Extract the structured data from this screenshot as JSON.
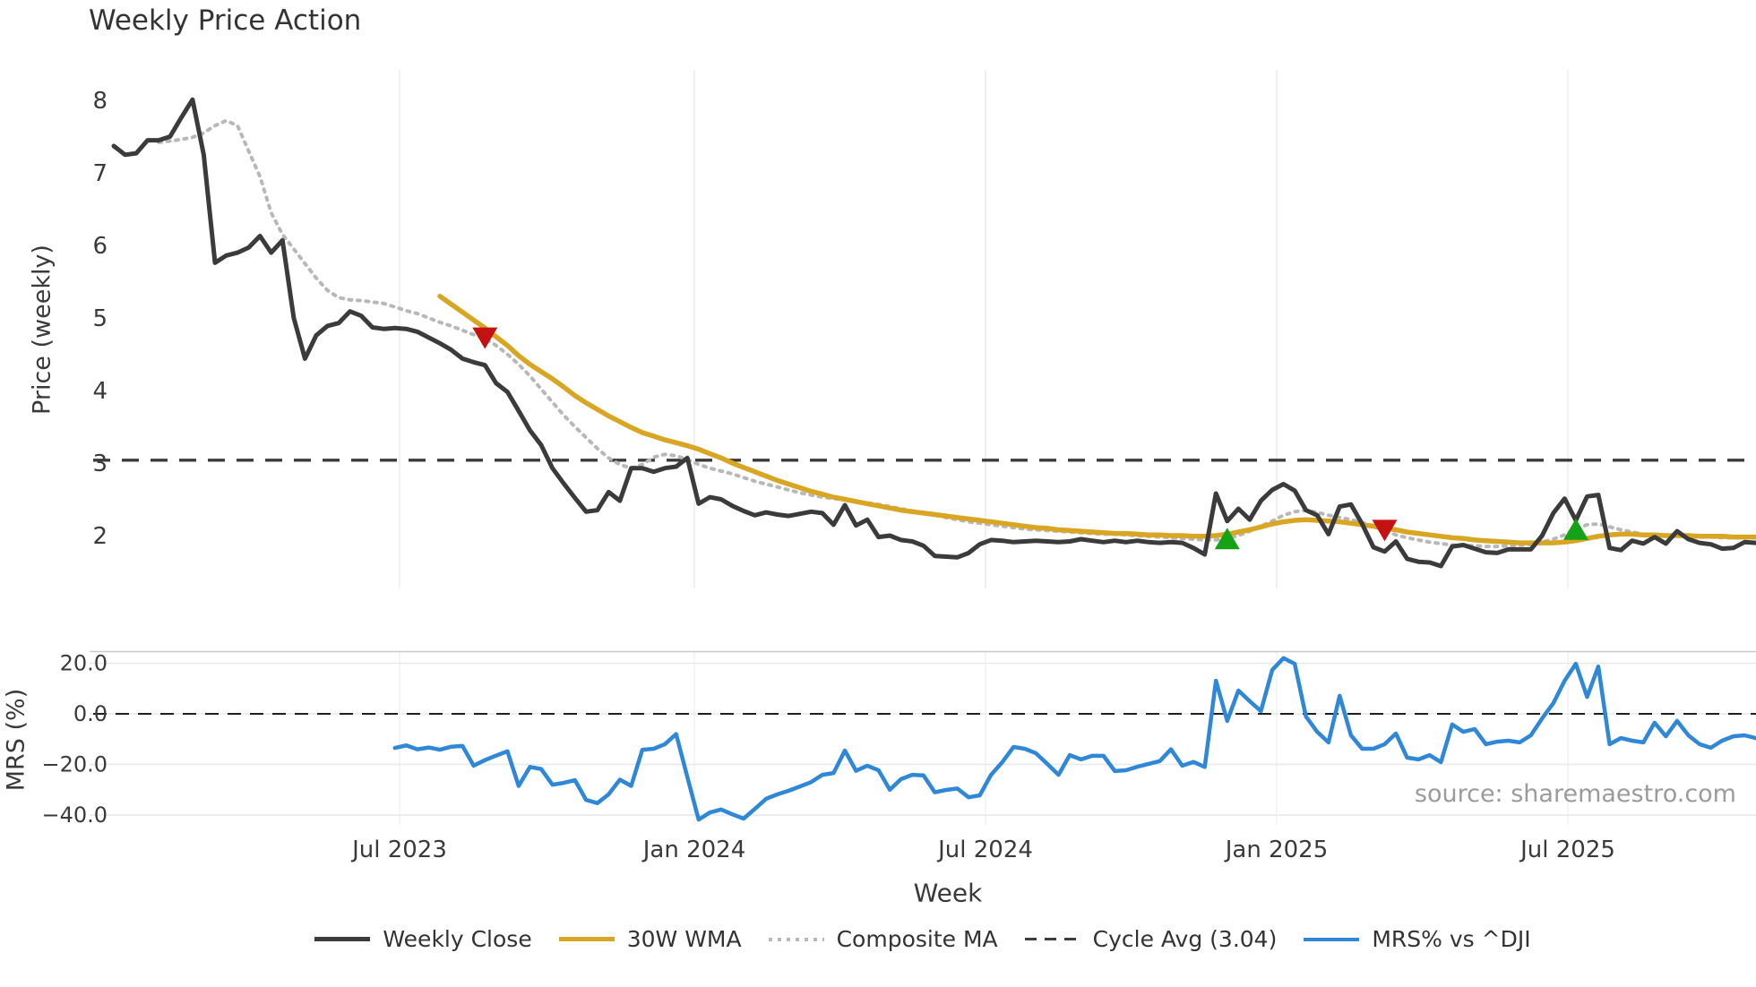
{
  "title": "Weekly Price Action",
  "xlabel": "Week",
  "source": "source: sharemaestro.com",
  "colors": {
    "weekly_close": "#3b3b3b",
    "wma30": "#d8a622",
    "composite": "#b8b8b8",
    "cycle_avg": "#3b3b3b",
    "mrs": "#2f87d8",
    "sell_marker": "#c41111",
    "buy_marker": "#16a216",
    "grid_vertical": "#ececec",
    "grid_mrs": "#e7e7ec",
    "spine": "#c9c9ce",
    "tick_text": "#3a3a3a"
  },
  "legend": {
    "items": [
      {
        "label": "Weekly Close",
        "style": "weekly"
      },
      {
        "label": "30W WMA",
        "style": "wma"
      },
      {
        "label": "Composite MA",
        "style": "composite"
      },
      {
        "label": "Cycle Avg (3.04)",
        "style": "cycle"
      },
      {
        "label": "MRS% vs ^DJI",
        "style": "mrs"
      }
    ]
  },
  "chart_data": {
    "type": "line",
    "x_axis": {
      "unit": "week",
      "weeks_total": 147,
      "ticks": [
        {
          "week": 25.41,
          "label": "Jul 2023"
        },
        {
          "week": 51.62,
          "label": "Jan 2024"
        },
        {
          "week": 77.51,
          "label": "Jul 2024"
        },
        {
          "week": 103.4,
          "label": "Jan 2025"
        },
        {
          "week": 129.29,
          "label": "Jul 2025"
        }
      ]
    },
    "panels": [
      {
        "name": "price",
        "ylabel": "Price (weekly)",
        "yticks": [
          8,
          7,
          6,
          5,
          4,
          3,
          2
        ],
        "ylim": [
          1.27,
          8.42
        ],
        "grid": "vertical",
        "cycle_avg": {
          "label": "Cycle Avg (3.04)",
          "value": 3.04
        },
        "series": [
          {
            "name": "Weekly Close",
            "start_week": 0,
            "values": [
              7.37,
              7.25,
              7.27,
              7.45,
              7.45,
              7.5,
              7.76,
              8.01,
              7.25,
              5.76,
              5.86,
              5.9,
              5.97,
              6.13,
              5.9,
              6.07,
              5.0,
              4.44,
              4.76,
              4.89,
              4.93,
              5.09,
              5.03,
              4.87,
              4.85,
              4.86,
              4.85,
              4.81,
              4.73,
              4.65,
              4.56,
              4.44,
              4.39,
              4.35,
              4.1,
              3.98,
              3.72,
              3.45,
              3.25,
              2.93,
              2.72,
              2.52,
              2.33,
              2.35,
              2.6,
              2.48,
              2.93,
              2.93,
              2.88,
              2.93,
              2.95,
              3.07,
              2.44,
              2.53,
              2.5,
              2.41,
              2.34,
              2.28,
              2.32,
              2.29,
              2.27,
              2.3,
              2.33,
              2.31,
              2.15,
              2.42,
              2.14,
              2.22,
              1.98,
              2.0,
              1.94,
              1.92,
              1.86,
              1.72,
              1.71,
              1.7,
              1.76,
              1.88,
              1.94,
              1.93,
              1.91,
              1.92,
              1.93,
              1.92,
              1.91,
              1.92,
              1.95,
              1.93,
              1.91,
              1.93,
              1.91,
              1.93,
              1.91,
              1.9,
              1.91,
              1.9,
              1.83,
              1.74,
              2.58,
              2.2,
              2.37,
              2.22,
              2.48,
              2.63,
              2.71,
              2.62,
              2.35,
              2.28,
              2.02,
              2.4,
              2.43,
              2.16,
              1.84,
              1.78,
              1.92,
              1.68,
              1.64,
              1.63,
              1.58,
              1.85,
              1.87,
              1.82,
              1.77,
              1.76,
              1.81,
              1.81,
              1.81,
              2.0,
              2.31,
              2.51,
              2.21,
              2.54,
              2.56,
              1.83,
              1.8,
              1.93,
              1.89,
              1.98,
              1.89,
              2.06,
              1.95,
              1.9,
              1.88,
              1.82,
              1.83,
              1.91,
              1.9
            ]
          },
          {
            "name": "30W WMA",
            "start_week": 29,
            "values": [
              5.3,
              5.19,
              5.08,
              4.97,
              4.86,
              4.74,
              4.62,
              4.48,
              4.36,
              4.26,
              4.16,
              4.05,
              3.93,
              3.83,
              3.74,
              3.65,
              3.57,
              3.49,
              3.42,
              3.37,
              3.32,
              3.28,
              3.24,
              3.19,
              3.13,
              3.07,
              3.0,
              2.94,
              2.88,
              2.82,
              2.76,
              2.71,
              2.66,
              2.61,
              2.57,
              2.53,
              2.5,
              2.47,
              2.44,
              2.41,
              2.38,
              2.35,
              2.33,
              2.31,
              2.29,
              2.27,
              2.25,
              2.23,
              2.21,
              2.19,
              2.17,
              2.15,
              2.13,
              2.11,
              2.1,
              2.08,
              2.07,
              2.06,
              2.05,
              2.04,
              2.03,
              2.03,
              2.02,
              2.01,
              2.01,
              2.0,
              2.0,
              1.99,
              1.99,
              2.0,
              2.02,
              2.05,
              2.08,
              2.12,
              2.16,
              2.19,
              2.21,
              2.22,
              2.21,
              2.2,
              2.19,
              2.17,
              2.15,
              2.13,
              2.1,
              2.08,
              2.05,
              2.03,
              2.01,
              1.99,
              1.97,
              1.96,
              1.94,
              1.93,
              1.92,
              1.91,
              1.9,
              1.9,
              1.9,
              1.9,
              1.91,
              1.93,
              1.96,
              1.99,
              2.01,
              2.02,
              2.02,
              2.01,
              2.01,
              2.0,
              2.0,
              2.0,
              1.99,
              1.99,
              1.99,
              1.98,
              1.98,
              1.98
            ]
          },
          {
            "name": "Composite MA",
            "start_week": 4,
            "values": [
              7.42,
              7.44,
              7.46,
              7.49,
              7.55,
              7.65,
              7.72,
              7.65,
              7.3,
              6.95,
              6.45,
              6.15,
              5.95,
              5.75,
              5.55,
              5.38,
              5.28,
              5.25,
              5.24,
              5.22,
              5.2,
              5.15,
              5.1,
              5.06,
              5.0,
              4.94,
              4.89,
              4.83,
              4.77,
              4.72,
              4.62,
              4.5,
              4.36,
              4.2,
              4.02,
              3.84,
              3.66,
              3.5,
              3.35,
              3.2,
              3.07,
              2.98,
              2.93,
              2.98,
              3.08,
              3.12,
              3.1,
              3.05,
              2.98,
              2.93,
              2.89,
              2.85,
              2.8,
              2.75,
              2.71,
              2.67,
              2.63,
              2.59,
              2.56,
              2.53,
              2.51,
              2.49,
              2.47,
              2.45,
              2.43,
              2.4,
              2.37,
              2.34,
              2.31,
              2.28,
              2.25,
              2.22,
              2.19,
              2.17,
              2.15,
              2.13,
              2.11,
              2.09,
              2.08,
              2.07,
              2.06,
              2.05,
              2.04,
              2.03,
              2.02,
              2.02,
              2.01,
              2.0,
              1.99,
              1.98,
              1.97,
              1.96,
              1.95,
              1.94,
              1.94,
              1.96,
              2.0,
              2.06,
              2.13,
              2.2,
              2.28,
              2.33,
              2.35,
              2.32,
              2.28,
              2.25,
              2.22,
              2.18,
              2.13,
              2.07,
              2.01,
              1.97,
              1.94,
              1.91,
              1.89,
              1.87,
              1.86,
              1.86,
              1.85,
              1.85,
              1.86,
              1.87,
              1.88,
              1.91,
              1.95,
              2.01,
              2.09,
              2.15,
              2.16,
              2.12,
              2.08,
              2.05,
              2.02,
              2.01,
              2.0,
              2.0,
              1.99,
              1.98,
              1.98,
              1.97,
              1.97,
              1.97,
              1.97
            ]
          }
        ],
        "signals": [
          {
            "week": 33,
            "type": "sell"
          },
          {
            "week": 99,
            "type": "buy"
          },
          {
            "week": 113,
            "type": "sell"
          },
          {
            "week": 130,
            "type": "buy"
          }
        ]
      },
      {
        "name": "mrs",
        "ylabel": "MRS (%)",
        "yticks": [
          20.0,
          0.0,
          -20.0,
          -40.0
        ],
        "ylim": [
          -44.2,
          24.8
        ],
        "grid": "horizontal",
        "zero_line": 0.0,
        "series": [
          {
            "name": "MRS% vs ^DJI",
            "start_week": 25,
            "values": [
              -13.5,
              -12.5,
              -14.0,
              -13.3,
              -14.2,
              -13.0,
              -12.7,
              -20.5,
              -18.3,
              -16.5,
              -14.8,
              -28.5,
              -21.0,
              -21.8,
              -28.0,
              -27.3,
              -26.2,
              -34.0,
              -35.3,
              -31.8,
              -26.0,
              -28.5,
              -14.2,
              -13.8,
              -12.0,
              -8.0,
              -25.0,
              -41.8,
              -39.0,
              -37.8,
              -39.7,
              -41.4,
              -37.6,
              -33.6,
              -31.8,
              -30.4,
              -28.7,
              -27.0,
              -24.1,
              -23.4,
              -14.5,
              -22.5,
              -20.5,
              -22.3,
              -30.0,
              -25.8,
              -24.1,
              -24.3,
              -31.0,
              -30.1,
              -29.5,
              -33.0,
              -32.2,
              -24.1,
              -19.1,
              -13.1,
              -13.8,
              -15.6,
              -19.8,
              -24.1,
              -16.3,
              -18.0,
              -16.6,
              -16.6,
              -22.6,
              -22.3,
              -20.9,
              -19.8,
              -18.7,
              -14.0,
              -20.5,
              -19.0,
              -21.0,
              13.1,
              -2.8,
              9.2,
              5.0,
              1.1,
              17.3,
              22.0,
              19.8,
              -1.1,
              -7.1,
              -11.3,
              7.1,
              -8.5,
              -13.8,
              -13.8,
              -12.0,
              -7.8,
              -17.3,
              -18.0,
              -16.3,
              -19.1,
              -4.2,
              -7.1,
              -6.0,
              -12.0,
              -11.0,
              -10.6,
              -11.3,
              -8.5,
              -1.8,
              4.2,
              13.1,
              19.8,
              6.7,
              18.7,
              -12.0,
              -9.6,
              -10.6,
              -11.3,
              -3.5,
              -8.9,
              -2.8,
              -8.5,
              -12.0,
              -13.4,
              -10.6,
              -8.9,
              -8.5,
              -9.6
            ]
          }
        ]
      }
    ]
  }
}
